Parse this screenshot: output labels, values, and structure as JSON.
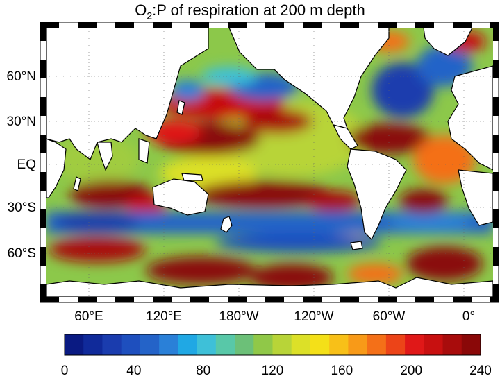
{
  "title": {
    "prefix": "O",
    "subscript": "2",
    "rest": ":P of respiration at 200 m depth"
  },
  "lat_labels": [
    "60°N",
    "30°N",
    "EQ",
    "30°S",
    "60°S"
  ],
  "lon_labels": [
    "60°E",
    "120°E",
    "180°W",
    "120°W",
    "60°W",
    "0°"
  ],
  "colorbar": {
    "min": 0,
    "max": 240,
    "ticks": [
      "0",
      "40",
      "80",
      "120",
      "160",
      "200",
      "240"
    ],
    "colors": [
      "#0a1a82",
      "#102a9a",
      "#1a3cae",
      "#1e4fbe",
      "#2463c8",
      "#2a80d8",
      "#20a8e4",
      "#3ec0d8",
      "#58c8a8",
      "#6cc078",
      "#90c848",
      "#b8d438",
      "#dce028",
      "#f4e018",
      "#f8c018",
      "#f89a18",
      "#f47018",
      "#ec4418",
      "#e01818",
      "#c81010",
      "#a80c0c",
      "#8a0808"
    ]
  },
  "colors": {
    "land": "#ffffff",
    "coast": "#000000",
    "ocean_base": "#8cc84a"
  }
}
